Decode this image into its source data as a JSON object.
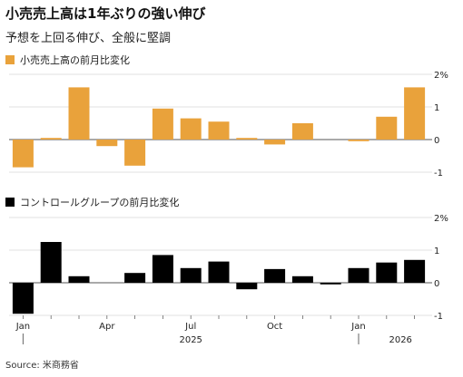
{
  "header": {
    "title": "小売売上高は1年ぶりの強い伸び",
    "subtitle": "予想を上回る伸び、全般に堅調"
  },
  "source": "Source: 米商務省",
  "colors": {
    "top_series": "#e9a23b",
    "bottom_series": "#000000",
    "grid": "#d9d9d9",
    "zero": "#555555"
  },
  "chart_data": [
    {
      "type": "bar",
      "legend": "小売売上高の前月比変化",
      "legend_color": "#e9a23b",
      "ylim": [
        -1,
        2
      ],
      "yticks": [
        "2%",
        "1",
        "0",
        "-1"
      ],
      "ytick_values": [
        2,
        1,
        0,
        -1
      ],
      "categories": [
        "2025-01",
        "2025-02",
        "2025-03",
        "2025-04",
        "2025-05",
        "2025-06",
        "2025-07",
        "2025-08",
        "2025-09",
        "2025-10",
        "2025-11",
        "2025-12",
        "2026-01",
        "2026-02",
        "2026-03"
      ],
      "values": [
        -0.85,
        0.05,
        1.6,
        -0.2,
        -0.8,
        0.95,
        0.65,
        0.55,
        0.05,
        -0.15,
        0.5,
        0.0,
        -0.05,
        0.7,
        1.6
      ]
    },
    {
      "type": "bar",
      "legend": "コントロールグループの前月比変化",
      "legend_color": "#000000",
      "ylim": [
        -1,
        2
      ],
      "yticks": [
        "2%",
        "1",
        "0",
        "-1"
      ],
      "ytick_values": [
        2,
        1,
        0,
        -1
      ],
      "categories": [
        "2025-01",
        "2025-02",
        "2025-03",
        "2025-04",
        "2025-05",
        "2025-06",
        "2025-07",
        "2025-08",
        "2025-09",
        "2025-10",
        "2025-11",
        "2025-12",
        "2026-01",
        "2026-02",
        "2026-03"
      ],
      "values": [
        -0.95,
        1.25,
        0.2,
        0.0,
        0.3,
        0.85,
        0.45,
        0.65,
        -0.2,
        0.42,
        0.2,
        -0.05,
        0.45,
        0.62,
        0.7
      ]
    }
  ],
  "xaxis": {
    "month_labels": [
      {
        "index": 0,
        "label": "Jan"
      },
      {
        "index": 3,
        "label": "Apr"
      },
      {
        "index": 6,
        "label": "Jul"
      },
      {
        "index": 9,
        "label": "Oct"
      },
      {
        "index": 12,
        "label": "Jan"
      }
    ],
    "year_labels": [
      {
        "index": 6,
        "label": "2025"
      },
      {
        "index": 13.5,
        "label": "2026"
      }
    ]
  }
}
